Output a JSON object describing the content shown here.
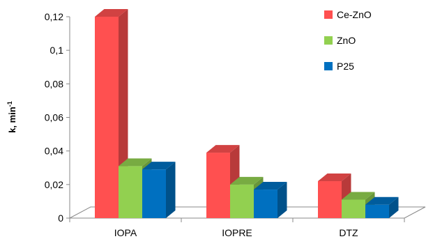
{
  "chart_data": {
    "type": "bar",
    "categories": [
      "IOPA",
      "IOPRE",
      "DTZ"
    ],
    "series": [
      {
        "name": "Ce-ZnO",
        "values": [
          0.12,
          0.039,
          0.022
        ],
        "color": "#FF5050"
      },
      {
        "name": "ZnO",
        "values": [
          0.031,
          0.02,
          0.011
        ],
        "color": "#92D050"
      },
      {
        "name": "P25",
        "values": [
          0.029,
          0.017,
          0.008
        ],
        "color": "#0070C0"
      }
    ],
    "y_tick_labels": [
      "0",
      "0,02",
      "0,04",
      "0,06",
      "0,08",
      "0,1",
      "0,12"
    ],
    "y_ticks": [
      0,
      0.02,
      0.04,
      0.06,
      0.08,
      0.1,
      0.12
    ],
    "ylabel": "k, min",
    "ylabel_sup": "-1",
    "ylim": [
      0,
      0.12
    ],
    "legend_position": "top-right",
    "grid": false,
    "style": "3d-column"
  }
}
